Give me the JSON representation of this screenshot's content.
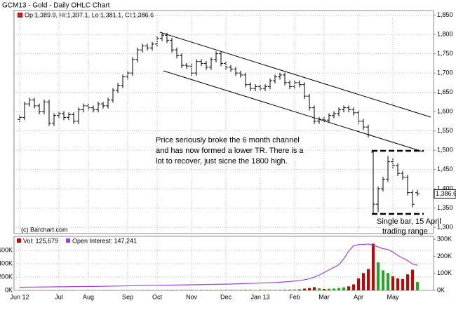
{
  "chart_data": [
    {
      "type": "ohlc",
      "title": "GCM13 - Gold - Daily OHLC Chart",
      "header": "Op:1,389.9, Hi:1,397.1, Lo:1,381.1, Cl:1,386.6",
      "copyright": "(c) Barchart.com",
      "last_label": "1,386.6",
      "color": "#000000",
      "grid": true,
      "annotations": [
        "Price seriously broke the 6 month channel",
        "and has now formed a lower TR.  There is a",
        "lot to recover, just sicne the 1800 high.",
        "Single bar, 15 April",
        "trading range"
      ],
      "ylim": [
        1284,
        1862
      ],
      "yticks": [
        {
          "value": 1300,
          "label": "1,300"
        },
        {
          "value": 1350,
          "label": "1,350"
        },
        {
          "value": 1400,
          "label": "1,400"
        },
        {
          "value": 1450,
          "label": "1,450"
        },
        {
          "value": 1500,
          "label": "1,500"
        },
        {
          "value": 1550,
          "label": "1,550"
        },
        {
          "value": 1600,
          "label": "1,600"
        },
        {
          "value": 1650,
          "label": "1,650"
        },
        {
          "value": 1700,
          "label": "1,700"
        },
        {
          "value": 1750,
          "label": "1,750"
        },
        {
          "value": 1800,
          "label": "1,800"
        },
        {
          "value": 1850,
          "label": "1,850"
        }
      ],
      "open": [
        1580,
        1585,
        1620,
        1630,
        1615,
        1600,
        1625,
        1570,
        1590,
        1595,
        1585,
        1592,
        1575,
        1605,
        1615,
        1610,
        1605,
        1620,
        1615,
        1630,
        1655,
        1668,
        1690,
        1700,
        1735,
        1760,
        1770,
        1765,
        1775,
        1790,
        1798,
        1785,
        1760,
        1745,
        1720,
        1718,
        1700,
        1730,
        1725,
        1715,
        1735,
        1750,
        1725,
        1715,
        1710,
        1700,
        1695,
        1670,
        1660,
        1665,
        1660,
        1665,
        1680,
        1690,
        1695,
        1675,
        1665,
        1675,
        1670,
        1640,
        1610,
        1575,
        1580,
        1578,
        1590,
        1595,
        1605,
        1610,
        1605,
        1597,
        1575,
        1560,
        1495,
        1360,
        1400,
        1425,
        1470,
        1460,
        1440,
        1430,
        1390,
        1389.9
      ],
      "high": [
        1591,
        1626,
        1636,
        1636,
        1621,
        1631,
        1631,
        1596,
        1601,
        1601,
        1598,
        1598,
        1611,
        1621,
        1621,
        1616,
        1626,
        1626,
        1636,
        1661,
        1674,
        1696,
        1706,
        1741,
        1766,
        1776,
        1776,
        1781,
        1796,
        1804,
        1804,
        1791,
        1766,
        1751,
        1726,
        1724,
        1736,
        1736,
        1731,
        1741,
        1756,
        1756,
        1731,
        1721,
        1716,
        1706,
        1701,
        1676,
        1671,
        1671,
        1671,
        1686,
        1696,
        1701,
        1701,
        1681,
        1681,
        1681,
        1676,
        1646,
        1616,
        1586,
        1586,
        1596,
        1601,
        1611,
        1616,
        1616,
        1611,
        1603,
        1581,
        1566,
        1500,
        1406,
        1431,
        1485,
        1480,
        1466,
        1446,
        1436,
        1396,
        1397.1
      ],
      "low": [
        1573,
        1578,
        1613,
        1608,
        1593,
        1593,
        1563,
        1563,
        1583,
        1578,
        1578,
        1568,
        1568,
        1598,
        1603,
        1598,
        1598,
        1608,
        1608,
        1623,
        1648,
        1661,
        1683,
        1693,
        1728,
        1753,
        1758,
        1758,
        1768,
        1783,
        1778,
        1753,
        1738,
        1713,
        1711,
        1693,
        1693,
        1718,
        1708,
        1708,
        1728,
        1718,
        1708,
        1703,
        1693,
        1688,
        1663,
        1653,
        1653,
        1653,
        1653,
        1658,
        1673,
        1683,
        1668,
        1658,
        1658,
        1663,
        1633,
        1603,
        1568,
        1568,
        1571,
        1571,
        1583,
        1588,
        1598,
        1598,
        1590,
        1568,
        1553,
        1533,
        1335,
        1340,
        1393,
        1418,
        1453,
        1433,
        1423,
        1383,
        1352,
        1381.1
      ],
      "close": [
        1585,
        1620,
        1630,
        1615,
        1600,
        1625,
        1570,
        1590,
        1595,
        1585,
        1592,
        1575,
        1605,
        1615,
        1610,
        1605,
        1620,
        1615,
        1630,
        1655,
        1668,
        1690,
        1700,
        1735,
        1760,
        1770,
        1765,
        1775,
        1790,
        1798,
        1785,
        1760,
        1745,
        1720,
        1718,
        1700,
        1730,
        1725,
        1715,
        1735,
        1750,
        1725,
        1715,
        1710,
        1700,
        1695,
        1670,
        1660,
        1665,
        1660,
        1665,
        1680,
        1690,
        1695,
        1675,
        1665,
        1675,
        1670,
        1640,
        1610,
        1575,
        1580,
        1578,
        1590,
        1595,
        1605,
        1610,
        1605,
        1597,
        1575,
        1560,
        1540,
        1360,
        1400,
        1425,
        1470,
        1460,
        1440,
        1430,
        1390,
        1360,
        1386.6
      ]
    },
    {
      "type": "volume_oi",
      "grid": true,
      "categories": [
        "Jun 12",
        null,
        null,
        null,
        null,
        null,
        null,
        null,
        "Jul",
        null,
        null,
        null,
        null,
        null,
        "Aug",
        null,
        null,
        null,
        null,
        null,
        null,
        null,
        "Sep",
        null,
        null,
        null,
        null,
        null,
        "Oct",
        null,
        null,
        null,
        null,
        null,
        null,
        "Nov",
        null,
        null,
        null,
        null,
        null,
        null,
        "Dec",
        null,
        null,
        null,
        null,
        null,
        null,
        "Jan 13",
        null,
        null,
        null,
        null,
        null,
        null,
        "Feb",
        null,
        null,
        null,
        null,
        null,
        "Mar",
        null,
        null,
        null,
        null,
        null,
        null,
        "Apr",
        null,
        null,
        null,
        null,
        null,
        null,
        "May",
        null,
        null,
        null,
        null,
        null
      ],
      "ylim": [
        0,
        810000
      ],
      "yticks": [
        {
          "value": 0,
          "label": "0K"
        },
        {
          "value": 200000,
          "label": "200K"
        },
        {
          "value": 400000,
          "label": "400K"
        },
        {
          "value": 600000,
          "label": "600K"
        }
      ],
      "y2lim": [
        0,
        317000
      ],
      "y2ticks": [
        {
          "value": 0,
          "label": "0K"
        },
        {
          "value": 100000,
          "label": "100K"
        },
        {
          "value": 200000,
          "label": "200K"
        },
        {
          "value": 300000,
          "label": "300K"
        }
      ],
      "series": [
        {
          "name": "Vol: 125,679",
          "color": "#cc0000",
          "up_color": "#22aa22",
          "values": [
            1200,
            900,
            1500,
            1100,
            800,
            1300,
            1700,
            1000,
            900,
            1200,
            1100,
            1400,
            1600,
            1000,
            1200,
            900,
            1500,
            1300,
            1800,
            2500,
            2200,
            3000,
            2800,
            3500,
            4000,
            3200,
            2600,
            3000,
            3800,
            4200,
            3600,
            4100,
            3900,
            4500,
            3800,
            4200,
            5000,
            4600,
            4000,
            5200,
            5800,
            4900,
            4300,
            5100,
            4700,
            5600,
            6800,
            5200,
            4800,
            6000,
            6500,
            7200,
            6900,
            8000,
            8500,
            9200,
            12000,
            14000,
            26000,
            35000,
            48000,
            30000,
            22000,
            25000,
            28000,
            36000,
            45000,
            60000,
            90000,
            180000,
            260000,
            320000,
            700000,
            420000,
            300000,
            260000,
            210000,
            180000,
            170000,
            240000,
            310000,
            125679
          ]
        },
        {
          "name": "Open Interest: 147,241",
          "color": "#a040e0",
          "axis": "y2",
          "values": [
            18000,
            18500,
            19000,
            19200,
            19500,
            20000,
            20300,
            20500,
            21000,
            21200,
            21500,
            22000,
            22300,
            22500,
            23000,
            23200,
            23500,
            24000,
            24500,
            25000,
            25500,
            26000,
            26500,
            27000,
            27500,
            28000,
            28500,
            29000,
            29500,
            30000,
            30500,
            31000,
            31500,
            32000,
            32500,
            33000,
            33500,
            34000,
            34500,
            35000,
            35500,
            36000,
            36500,
            37000,
            38000,
            39000,
            40000,
            41000,
            42000,
            43000,
            44000,
            45000,
            46000,
            48000,
            50000,
            52000,
            55000,
            58000,
            62000,
            68000,
            78000,
            90000,
            105000,
            120000,
            135000,
            150000,
            185000,
            230000,
            262000,
            268000,
            270000,
            272000,
            265000,
            255000,
            245000,
            240000,
            225000,
            205000,
            190000,
            175000,
            155000,
            147241
          ]
        }
      ]
    }
  ]
}
